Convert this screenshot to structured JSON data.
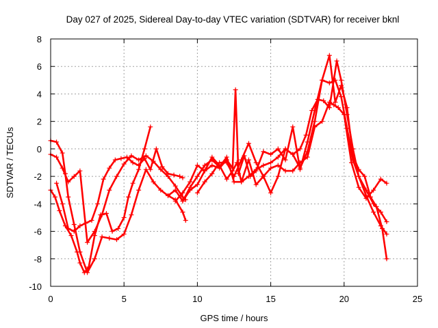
{
  "chart_data": {
    "type": "scatter",
    "title": "Day 027 of 2025, Sidereal Day-to-day VTEC variation (SDTVAR) for receiver bknl",
    "xlabel": "GPS time / hours",
    "ylabel": "SDTVAR / TECUs",
    "xlim": [
      0,
      25
    ],
    "ylim": [
      -10,
      8
    ],
    "xticks": [
      "0",
      "5",
      "10",
      "15",
      "20",
      "25"
    ],
    "yticks": [
      "-10",
      "-8",
      "-6",
      "-4",
      "-2",
      "0",
      "2",
      "4",
      "6",
      "8"
    ],
    "grid": true,
    "marker": "+",
    "color": "#ff0000",
    "series": [
      {
        "x": [
          0.0,
          0.4,
          0.8,
          1.0,
          1.2,
          1.6,
          2.0,
          2.5,
          3.0,
          3.5,
          4.0,
          4.5,
          5.0,
          5.5,
          6.0,
          6.5,
          7.0,
          7.5,
          8.0,
          8.5,
          9.0,
          9.2
        ],
        "y": [
          0.6,
          0.5,
          -0.3,
          -1.8,
          -3.5,
          -5.5,
          -7.5,
          -9.0,
          -8.0,
          -6.4,
          -6.5,
          -6.6,
          -6.2,
          -4.8,
          -3.0,
          -1.5,
          -2.4,
          -3.0,
          -3.4,
          -3.7,
          -4.6,
          -5.2
        ]
      },
      {
        "x": [
          0.0,
          0.4,
          0.8,
          1.2,
          1.6,
          2.0,
          2.5,
          3.0,
          3.5,
          4.0,
          4.5,
          5.0,
          5.5,
          6.0,
          6.5,
          7.0,
          7.5,
          8.0,
          8.5,
          9.0,
          9.2
        ],
        "y": [
          -0.4,
          -0.6,
          -1.4,
          -2.4,
          -2.0,
          -1.6,
          -6.8,
          -6.0,
          -4.8,
          -3.0,
          -2.0,
          -1.1,
          -0.5,
          -0.8,
          -0.5,
          -0.9,
          -1.5,
          -2.0,
          -2.7,
          -3.5,
          -3.7
        ]
      },
      {
        "x": [
          0.0,
          0.3,
          0.6,
          1.0,
          1.4,
          1.8,
          2.0,
          2.3,
          2.6,
          3.0,
          3.4,
          3.8,
          4.2,
          4.6,
          5.0,
          5.3,
          5.6,
          6.0,
          6.4,
          6.8
        ],
        "y": [
          -3.0,
          -3.5,
          -4.5,
          -5.6,
          -6.3,
          -7.5,
          -8.3,
          -9.0,
          -8.6,
          -6.3,
          -4.8,
          -4.7,
          -6.0,
          -5.8,
          -5.0,
          -3.5,
          -2.5,
          -1.5,
          0.0,
          1.6
        ]
      },
      {
        "x": [
          0.4,
          0.8,
          1.2,
          1.6,
          2.0,
          2.4,
          2.8,
          3.2,
          3.6,
          4.0,
          4.4,
          4.8,
          5.2,
          5.6,
          6.0,
          6.4,
          6.8,
          7.2,
          7.6,
          8.0,
          8.4,
          8.8,
          9.0
        ],
        "y": [
          -2.5,
          -4.0,
          -5.8,
          -6.0,
          -5.6,
          -5.4,
          -5.2,
          -4.0,
          -2.2,
          -1.4,
          -0.8,
          -0.7,
          -0.6,
          -1.0,
          -1.2,
          -0.7,
          -1.5,
          -0.0,
          -1.3,
          -1.8,
          -1.9,
          -2.0,
          -2.1
        ]
      },
      {
        "x": [
          8.0,
          8.5,
          9.0,
          9.5,
          10.0,
          10.5,
          11.0,
          11.5,
          12.0,
          12.4,
          12.7,
          13.0,
          13.5,
          14.0,
          14.5,
          15.0,
          15.5,
          16.0,
          16.5,
          17.0,
          17.5,
          18.0,
          18.5,
          19.0,
          19.3,
          19.6,
          20.0,
          20.5,
          21.0,
          21.5,
          22.0,
          22.5,
          22.9
        ],
        "y": [
          -3.4,
          -3.0,
          -3.8,
          -3.0,
          -2.6,
          -1.6,
          -0.6,
          -1.2,
          -2.2,
          -1.6,
          -1.0,
          -2.4,
          -0.8,
          -2.6,
          -2.0,
          -1.4,
          -1.2,
          -1.6,
          -1.6,
          -1.0,
          -0.6,
          1.6,
          2.0,
          3.4,
          3.2,
          3.0,
          2.5,
          -1.0,
          -2.8,
          -3.6,
          -3.0,
          -2.2,
          -2.5
        ]
      },
      {
        "x": [
          8.5,
          9.0,
          9.5,
          10.0,
          10.5,
          11.0,
          11.5,
          12.0,
          12.4,
          12.6,
          12.8,
          13.2,
          13.6,
          14.0,
          14.5,
          15.0,
          15.5,
          16.0,
          16.5,
          17.0,
          17.5,
          18.0,
          18.5,
          19.0,
          19.4,
          19.8,
          20.2,
          20.6,
          21.0,
          21.5,
          22.0,
          22.5,
          22.9
        ],
        "y": [
          -3.8,
          -3.2,
          -2.4,
          -1.2,
          -1.6,
          -1.2,
          -1.4,
          -0.8,
          -1.4,
          4.3,
          -1.8,
          -0.5,
          -2.0,
          -1.6,
          -0.2,
          -0.4,
          0.0,
          -0.8,
          1.6,
          -1.5,
          0.5,
          2.8,
          5.0,
          4.8,
          5.0,
          3.8,
          1.5,
          -0.8,
          -2.0,
          -3.0,
          -4.0,
          -4.6,
          -5.3
        ]
      },
      {
        "x": [
          9.0,
          9.5,
          10.0,
          10.5,
          11.0,
          11.5,
          12.0,
          12.5,
          13.0,
          13.5,
          14.0,
          14.5,
          15.0,
          15.5,
          16.0,
          16.5,
          17.0,
          17.4,
          17.8,
          18.2,
          18.6,
          19.0,
          19.5,
          19.8,
          20.2,
          20.6,
          21.0,
          21.5,
          22.0,
          22.5,
          22.9
        ],
        "y": [
          -3.8,
          -2.8,
          -2.0,
          -1.2,
          -0.8,
          -1.3,
          -0.6,
          -2.4,
          -2.4,
          -2.0,
          -1.5,
          -1.2,
          -1.0,
          -0.6,
          0.0,
          -0.4,
          0.0,
          1.0,
          2.8,
          3.6,
          3.5,
          3.0,
          6.4,
          5.0,
          2.5,
          0.0,
          -2.0,
          -3.4,
          -4.6,
          -5.6,
          -6.2
        ]
      },
      {
        "x": [
          10.0,
          10.5,
          11.0,
          11.5,
          12.0,
          12.5,
          13.0,
          13.5,
          14.0,
          14.5,
          15.0,
          15.5,
          16.0,
          16.5,
          17.0,
          17.5,
          18.0,
          18.5,
          19.0,
          19.4,
          19.8,
          20.2,
          20.6,
          21.0,
          21.4,
          21.8,
          22.2,
          22.6,
          22.9
        ],
        "y": [
          -3.2,
          -2.4,
          -1.8,
          -1.0,
          -1.0,
          -2.0,
          -0.8,
          0.4,
          -1.0,
          -2.0,
          -3.2,
          -2.0,
          0.0,
          -0.4,
          -1.4,
          -0.2,
          2.0,
          5.0,
          6.8,
          3.4,
          4.6,
          3.0,
          -0.5,
          -1.5,
          -2.0,
          -3.5,
          -4.2,
          -5.8,
          -8.0
        ]
      }
    ]
  }
}
